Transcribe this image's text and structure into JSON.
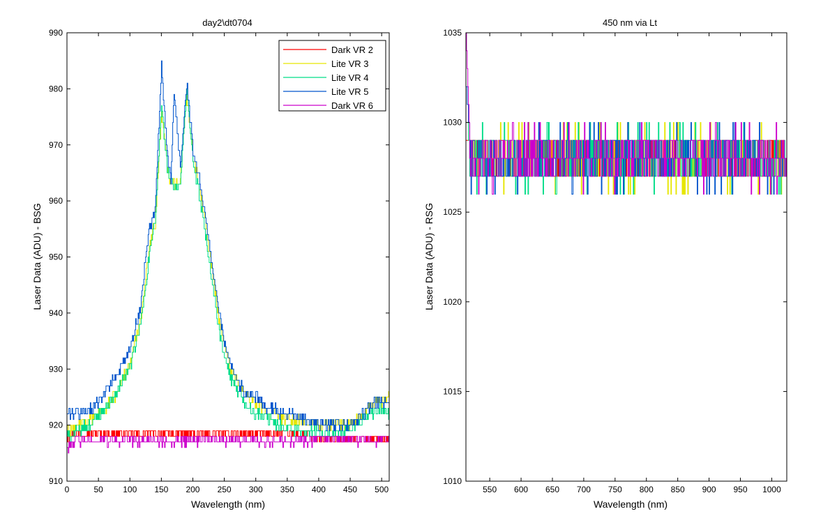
{
  "chart_data": [
    {
      "type": "line",
      "title": "day2\\dt0704",
      "xlabel": "Wavelength (nm)",
      "ylabel": "Laser Data (ADU) - BSG",
      "xlim": [
        0,
        512
      ],
      "ylim": [
        910,
        990
      ],
      "xticks": [
        "0",
        "50",
        "100",
        "150",
        "200",
        "250",
        "300",
        "350",
        "400",
        "450",
        "500"
      ],
      "yticks": [
        "910",
        "920",
        "930",
        "940",
        "950",
        "960",
        "970",
        "980",
        "990"
      ],
      "legend_position": "top-right",
      "grid": false,
      "series": [
        {
          "name": "Dark VR 2",
          "color": "#ff0000",
          "points": [
            [
              0,
              918
            ],
            [
              10,
              918.5
            ],
            [
              50,
              918.5
            ],
            [
              100,
              918.5
            ],
            [
              150,
              918.5
            ],
            [
              200,
              918.5
            ],
            [
              250,
              918.5
            ],
            [
              300,
              918.5
            ],
            [
              350,
              918.5
            ],
            [
              380,
              918.2
            ],
            [
              400,
              917.5
            ],
            [
              450,
              917.5
            ],
            [
              512,
              917.5
            ]
          ],
          "noise": 0.8
        },
        {
          "name": "Lite VR 3",
          "color": "#e6e600",
          "points": [
            [
              0,
              919
            ],
            [
              20,
              920
            ],
            [
              40,
              921
            ],
            [
              60,
              923
            ],
            [
              80,
              926
            ],
            [
              100,
              931
            ],
            [
              115,
              938
            ],
            [
              125,
              946
            ],
            [
              130,
              952
            ],
            [
              133,
              953
            ],
            [
              140,
              956
            ],
            [
              150,
              976
            ],
            [
              160,
              965
            ],
            [
              170,
              963
            ],
            [
              180,
              964
            ],
            [
              190,
              979
            ],
            [
              200,
              968
            ],
            [
              210,
              963
            ],
            [
              220,
              956
            ],
            [
              230,
              948
            ],
            [
              240,
              940
            ],
            [
              250,
              934
            ],
            [
              260,
              930
            ],
            [
              270,
              928
            ],
            [
              280,
              926
            ],
            [
              300,
              924
            ],
            [
              320,
              922
            ],
            [
              350,
              921
            ],
            [
              400,
              920
            ],
            [
              450,
              920
            ],
            [
              470,
              922
            ],
            [
              490,
              924
            ],
            [
              512,
              925
            ]
          ],
          "noise": 1.0
        },
        {
          "name": "Lite VR 4",
          "color": "#00dd88",
          "points": [
            [
              0,
              918
            ],
            [
              20,
              919
            ],
            [
              40,
              920.5
            ],
            [
              60,
              923
            ],
            [
              80,
              926
            ],
            [
              100,
              930.5
            ],
            [
              115,
              937
            ],
            [
              125,
              945
            ],
            [
              130,
              950
            ],
            [
              133,
              952
            ],
            [
              140,
              956
            ],
            [
              150,
              977
            ],
            [
              160,
              965
            ],
            [
              170,
              962
            ],
            [
              180,
              963
            ],
            [
              190,
              980
            ],
            [
              200,
              967
            ],
            [
              210,
              961
            ],
            [
              220,
              954
            ],
            [
              230,
              946
            ],
            [
              240,
              938
            ],
            [
              250,
              932
            ],
            [
              260,
              928
            ],
            [
              270,
              926
            ],
            [
              280,
              924
            ],
            [
              300,
              922
            ],
            [
              320,
              921
            ],
            [
              350,
              919.5
            ],
            [
              400,
              918.5
            ],
            [
              440,
              918.5
            ],
            [
              460,
              920
            ],
            [
              480,
              922
            ],
            [
              500,
              923
            ],
            [
              512,
              922
            ]
          ],
          "noise": 1.0
        },
        {
          "name": "Lite VR 5",
          "color": "#0055cc",
          "points": [
            [
              0,
              922
            ],
            [
              20,
              922
            ],
            [
              40,
              923
            ],
            [
              60,
              926
            ],
            [
              80,
              929
            ],
            [
              100,
              934
            ],
            [
              115,
              940
            ],
            [
              125,
              950
            ],
            [
              130,
              955
            ],
            [
              133,
              956
            ],
            [
              140,
              958
            ],
            [
              150,
              984
            ],
            [
              160,
              967
            ],
            [
              165,
              964
            ],
            [
              170,
              979
            ],
            [
              180,
              966
            ],
            [
              190,
              981
            ],
            [
              200,
              969
            ],
            [
              210,
              964
            ],
            [
              220,
              957
            ],
            [
              230,
              949
            ],
            [
              240,
              941
            ],
            [
              250,
              935
            ],
            [
              260,
              931
            ],
            [
              270,
              928
            ],
            [
              280,
              926
            ],
            [
              300,
              925
            ],
            [
              320,
              923
            ],
            [
              350,
              922
            ],
            [
              400,
              920
            ],
            [
              450,
              920
            ],
            [
              470,
              922
            ],
            [
              490,
              924
            ],
            [
              512,
              924
            ]
          ],
          "noise": 1.0
        },
        {
          "name": "Dark VR 6",
          "color": "#cc00cc",
          "points": [
            [
              0,
              916
            ],
            [
              10,
              917
            ],
            [
              50,
              917.3
            ],
            [
              100,
              917.3
            ],
            [
              150,
              917.3
            ],
            [
              200,
              917.3
            ],
            [
              250,
              917.3
            ],
            [
              300,
              917.3
            ],
            [
              350,
              917.3
            ],
            [
              400,
              917.3
            ],
            [
              450,
              917.3
            ],
            [
              512,
              917.3
            ]
          ],
          "noise": 0.9
        }
      ]
    },
    {
      "type": "line",
      "title": "450 nm via Lt",
      "xlabel": "Wavelength (nm)",
      "ylabel": "Laser Data (ADU) - RSG",
      "xlim": [
        512,
        1024
      ],
      "ylim": [
        1010,
        1035
      ],
      "xticks": [
        "550",
        "600",
        "650",
        "700",
        "750",
        "800",
        "850",
        "900",
        "950",
        "1000"
      ],
      "yticks": [
        "1010",
        "1015",
        "1020",
        "1025",
        "1030",
        "1035"
      ],
      "grid": false,
      "series": [
        {
          "name": "Dark VR 2",
          "color": "#ff0000",
          "start": [
            512,
            1029
          ],
          "base": 1028,
          "range": [
            1027,
            1029
          ]
        },
        {
          "name": "Lite VR 3",
          "color": "#e6e600",
          "start": [
            512,
            1030
          ],
          "base": 1028,
          "range": [
            1026,
            1030
          ]
        },
        {
          "name": "Lite VR 4",
          "color": "#00dd88",
          "start": [
            512,
            1030
          ],
          "base": 1028,
          "range": [
            1026,
            1030
          ]
        },
        {
          "name": "Lite VR 5",
          "color": "#0055cc",
          "start": [
            512,
            1032
          ],
          "base": 1028,
          "range": [
            1026,
            1030
          ]
        },
        {
          "name": "Dark VR 6",
          "color": "#cc00cc",
          "start": [
            512,
            1035
          ],
          "base": 1028,
          "range": [
            1026,
            1030
          ]
        }
      ]
    }
  ]
}
